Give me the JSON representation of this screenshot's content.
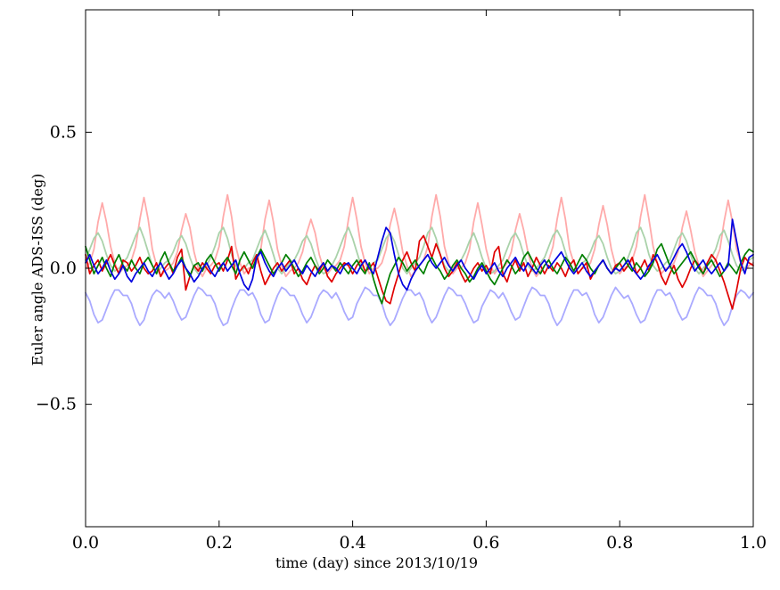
{
  "figure": {
    "background": "#ffffff",
    "frame_color": "#000000"
  },
  "chart_data": {
    "type": "line",
    "title": "",
    "xlabel": "time (day) since 2013/10/19",
    "ylabel": "Euler angle ADS-ISS (deg)",
    "xlim": [
      0.0,
      1.0
    ],
    "ylim": [
      -0.95,
      0.95
    ],
    "grid": false,
    "legend": "none",
    "x_ticks": {
      "values": [
        0.0,
        0.2,
        0.4,
        0.6,
        0.8,
        1.0
      ],
      "labels": [
        "0.0",
        "0.2",
        "0.4",
        "0.6",
        "0.8",
        "1.0"
      ]
    },
    "y_ticks": {
      "values": [
        -0.5,
        0.0,
        0.5
      ],
      "labels": [
        "−0.5",
        "0.0",
        "0.5"
      ]
    },
    "x_start": 0.0,
    "x_step": 0.00625,
    "series": [
      {
        "name": "pale-red-orbital",
        "color": "#ffaaaa",
        "linewidth": 1.8,
        "values": [
          0.0,
          0.02,
          0.07,
          0.17,
          0.24,
          0.17,
          0.08,
          0.02,
          -0.02,
          0.0,
          0.01,
          0.03,
          0.08,
          0.18,
          0.26,
          0.18,
          0.07,
          0.01,
          -0.03,
          -0.01,
          0.0,
          0.02,
          0.06,
          0.14,
          0.2,
          0.15,
          0.06,
          0.0,
          -0.03,
          0.0,
          0.01,
          0.03,
          0.08,
          0.19,
          0.27,
          0.19,
          0.08,
          0.02,
          -0.02,
          0.0,
          0.0,
          0.02,
          0.07,
          0.18,
          0.25,
          0.17,
          0.07,
          0.01,
          -0.03,
          -0.01,
          0.0,
          0.02,
          0.06,
          0.13,
          0.18,
          0.13,
          0.05,
          0.0,
          -0.02,
          0.0,
          0.01,
          0.03,
          0.08,
          0.18,
          0.26,
          0.18,
          0.08,
          0.02,
          -0.02,
          0.0,
          0.0,
          0.02,
          0.07,
          0.16,
          0.22,
          0.15,
          0.06,
          0.01,
          -0.03,
          -0.01,
          0.01,
          0.03,
          0.08,
          0.19,
          0.27,
          0.19,
          0.08,
          0.02,
          -0.02,
          0.0,
          0.0,
          0.02,
          0.07,
          0.17,
          0.24,
          0.16,
          0.07,
          0.01,
          -0.02,
          0.0,
          0.0,
          0.02,
          0.06,
          0.14,
          0.2,
          0.14,
          0.06,
          0.0,
          -0.03,
          -0.01,
          0.01,
          0.03,
          0.08,
          0.18,
          0.26,
          0.18,
          0.07,
          0.02,
          -0.02,
          0.0,
          0.0,
          0.02,
          0.07,
          0.16,
          0.23,
          0.16,
          0.07,
          0.01,
          -0.02,
          0.0,
          0.01,
          0.03,
          0.08,
          0.19,
          0.27,
          0.18,
          0.08,
          0.02,
          -0.02,
          0.0,
          0.0,
          0.02,
          0.06,
          0.15,
          0.21,
          0.14,
          0.06,
          0.01,
          -0.03,
          -0.01,
          0.01,
          0.03,
          0.07,
          0.17,
          0.25,
          0.17,
          0.07,
          0.02,
          -0.01,
          0.01,
          0.02
        ]
      },
      {
        "name": "pale-green-orbital",
        "color": "#aad2aa",
        "linewidth": 1.8,
        "values": [
          0.03,
          0.07,
          0.11,
          0.13,
          0.1,
          0.05,
          0.01,
          -0.01,
          0.0,
          0.02,
          0.04,
          0.08,
          0.12,
          0.15,
          0.11,
          0.06,
          0.01,
          -0.02,
          0.0,
          0.02,
          0.03,
          0.06,
          0.1,
          0.12,
          0.09,
          0.04,
          0.0,
          -0.02,
          -0.01,
          0.01,
          0.04,
          0.08,
          0.13,
          0.15,
          0.11,
          0.05,
          0.01,
          -0.01,
          0.0,
          0.02,
          0.03,
          0.07,
          0.11,
          0.14,
          0.1,
          0.05,
          0.0,
          -0.02,
          0.0,
          0.02,
          0.03,
          0.06,
          0.1,
          0.12,
          0.09,
          0.04,
          0.0,
          -0.02,
          -0.01,
          0.01,
          0.04,
          0.08,
          0.12,
          0.15,
          0.11,
          0.06,
          0.01,
          -0.01,
          0.0,
          0.02,
          0.03,
          0.07,
          0.11,
          0.13,
          0.1,
          0.05,
          0.0,
          -0.02,
          0.0,
          0.02,
          0.04,
          0.08,
          0.13,
          0.15,
          0.11,
          0.05,
          0.01,
          -0.01,
          0.0,
          0.02,
          0.03,
          0.06,
          0.1,
          0.13,
          0.09,
          0.04,
          0.0,
          -0.02,
          -0.01,
          0.01,
          0.03,
          0.07,
          0.11,
          0.13,
          0.1,
          0.05,
          0.01,
          -0.01,
          0.0,
          0.02,
          0.04,
          0.08,
          0.12,
          0.14,
          0.11,
          0.06,
          0.01,
          -0.02,
          0.0,
          0.02,
          0.03,
          0.06,
          0.1,
          0.12,
          0.09,
          0.04,
          0.0,
          -0.02,
          -0.01,
          0.01,
          0.04,
          0.08,
          0.13,
          0.15,
          0.11,
          0.05,
          0.01,
          -0.01,
          0.0,
          0.02,
          0.03,
          0.07,
          0.11,
          0.13,
          0.1,
          0.05,
          0.0,
          -0.02,
          0.0,
          0.02,
          0.04,
          0.07,
          0.12,
          0.14,
          0.1,
          0.05,
          0.01,
          -0.01,
          0.0,
          0.03,
          0.04
        ]
      },
      {
        "name": "pale-blue-orbital",
        "color": "#aaaaff",
        "linewidth": 1.8,
        "values": [
          -0.09,
          -0.12,
          -0.17,
          -0.2,
          -0.19,
          -0.15,
          -0.11,
          -0.08,
          -0.08,
          -0.1,
          -0.1,
          -0.13,
          -0.18,
          -0.21,
          -0.19,
          -0.14,
          -0.1,
          -0.08,
          -0.09,
          -0.11,
          -0.09,
          -0.12,
          -0.16,
          -0.19,
          -0.18,
          -0.14,
          -0.1,
          -0.07,
          -0.08,
          -0.1,
          -0.1,
          -0.13,
          -0.18,
          -0.21,
          -0.2,
          -0.15,
          -0.11,
          -0.08,
          -0.08,
          -0.1,
          -0.09,
          -0.12,
          -0.17,
          -0.2,
          -0.19,
          -0.14,
          -0.1,
          -0.07,
          -0.08,
          -0.1,
          -0.1,
          -0.13,
          -0.17,
          -0.2,
          -0.18,
          -0.14,
          -0.1,
          -0.08,
          -0.09,
          -0.11,
          -0.09,
          -0.12,
          -0.16,
          -0.19,
          -0.18,
          -0.13,
          -0.1,
          -0.07,
          -0.08,
          -0.1,
          -0.1,
          -0.13,
          -0.18,
          -0.21,
          -0.19,
          -0.15,
          -0.11,
          -0.08,
          -0.08,
          -0.1,
          -0.09,
          -0.12,
          -0.17,
          -0.2,
          -0.18,
          -0.14,
          -0.1,
          -0.07,
          -0.08,
          -0.1,
          -0.1,
          -0.13,
          -0.17,
          -0.2,
          -0.19,
          -0.14,
          -0.11,
          -0.08,
          -0.09,
          -0.11,
          -0.09,
          -0.12,
          -0.16,
          -0.19,
          -0.18,
          -0.14,
          -0.1,
          -0.07,
          -0.08,
          -0.1,
          -0.1,
          -0.13,
          -0.18,
          -0.21,
          -0.19,
          -0.15,
          -0.11,
          -0.08,
          -0.08,
          -0.1,
          -0.09,
          -0.12,
          -0.17,
          -0.2,
          -0.18,
          -0.14,
          -0.1,
          -0.07,
          -0.09,
          -0.11,
          -0.1,
          -0.13,
          -0.17,
          -0.2,
          -0.19,
          -0.15,
          -0.11,
          -0.08,
          -0.08,
          -0.1,
          -0.09,
          -0.12,
          -0.16,
          -0.19,
          -0.18,
          -0.14,
          -0.1,
          -0.07,
          -0.08,
          -0.1,
          -0.1,
          -0.13,
          -0.18,
          -0.21,
          -0.19,
          -0.14,
          -0.1,
          -0.08,
          -0.09,
          -0.11,
          -0.09
        ]
      },
      {
        "name": "red-euler",
        "color": "#e00000",
        "linewidth": 1.7,
        "values": [
          0.05,
          -0.02,
          0.01,
          0.03,
          -0.01,
          0.02,
          0.05,
          0.01,
          -0.02,
          0.03,
          0.02,
          -0.01,
          0.01,
          0.04,
          0.0,
          -0.02,
          -0.01,
          0.02,
          -0.03,
          0.0,
          0.02,
          -0.02,
          0.04,
          0.07,
          -0.08,
          -0.03,
          0.01,
          -0.01,
          0.02,
          0.0,
          -0.02,
          0.01,
          0.02,
          -0.01,
          0.03,
          0.08,
          -0.04,
          -0.01,
          0.01,
          -0.02,
          0.02,
          0.05,
          -0.01,
          -0.06,
          -0.03,
          0.0,
          0.02,
          -0.01,
          0.01,
          0.03,
          -0.02,
          0.0,
          -0.04,
          -0.06,
          -0.02,
          0.01,
          -0.01,
          0.02,
          -0.03,
          -0.05,
          -0.02,
          0.0,
          0.02,
          0.01,
          -0.02,
          0.01,
          0.03,
          -0.01,
          0.0,
          0.02,
          -0.03,
          -0.08,
          -0.12,
          -0.13,
          -0.07,
          -0.02,
          0.03,
          0.06,
          0.02,
          -0.01,
          0.1,
          0.12,
          0.08,
          0.04,
          0.09,
          0.05,
          0.0,
          -0.03,
          -0.01,
          0.02,
          -0.02,
          -0.05,
          -0.03,
          0.0,
          0.02,
          -0.01,
          0.01,
          -0.02,
          0.06,
          0.08,
          -0.02,
          -0.05,
          0.0,
          0.03,
          -0.01,
          0.02,
          -0.03,
          0.0,
          0.04,
          0.01,
          -0.02,
          0.01,
          -0.01,
          0.02,
          0.0,
          -0.03,
          0.01,
          0.03,
          -0.02,
          0.0,
          0.02,
          -0.04,
          -0.01,
          0.01,
          0.03,
          0.0,
          -0.02,
          0.01,
          0.02,
          -0.01,
          0.01,
          0.04,
          -0.02,
          0.0,
          0.03,
          -0.01,
          0.05,
          0.02,
          -0.03,
          -0.06,
          -0.02,
          0.01,
          -0.04,
          -0.07,
          -0.04,
          0.0,
          0.03,
          0.01,
          -0.02,
          0.02,
          0.05,
          0.03,
          -0.01,
          -0.05,
          -0.1,
          -0.15,
          -0.08,
          0.0,
          0.04,
          0.02,
          0.01
        ]
      },
      {
        "name": "green-euler",
        "color": "#007f00",
        "linewidth": 1.7,
        "values": [
          0.08,
          0.03,
          -0.02,
          0.01,
          0.04,
          0.0,
          -0.03,
          0.02,
          0.05,
          0.01,
          -0.01,
          0.03,
          0.0,
          -0.02,
          0.02,
          0.04,
          0.01,
          -0.02,
          0.03,
          0.06,
          0.02,
          -0.01,
          0.01,
          0.04,
          0.0,
          -0.03,
          0.01,
          0.02,
          -0.01,
          0.03,
          0.05,
          0.02,
          -0.01,
          0.02,
          0.04,
          0.01,
          -0.02,
          0.03,
          0.06,
          0.03,
          0.0,
          0.04,
          0.07,
          0.04,
          0.01,
          -0.02,
          0.0,
          0.02,
          0.05,
          0.03,
          0.0,
          -0.03,
          -0.01,
          0.02,
          0.04,
          0.01,
          -0.02,
          0.0,
          0.03,
          0.01,
          -0.01,
          0.02,
          0.0,
          -0.02,
          0.01,
          0.03,
          0.0,
          -0.02,
          0.02,
          -0.04,
          -0.09,
          -0.13,
          -0.07,
          -0.02,
          0.01,
          0.04,
          0.02,
          -0.01,
          0.01,
          0.03,
          0.0,
          -0.02,
          0.02,
          0.04,
          0.01,
          -0.01,
          -0.04,
          -0.02,
          0.01,
          0.03,
          0.0,
          -0.02,
          -0.05,
          -0.03,
          0.0,
          0.02,
          -0.01,
          -0.04,
          -0.06,
          -0.03,
          0.0,
          0.03,
          0.01,
          -0.02,
          0.0,
          0.04,
          0.06,
          0.03,
          0.0,
          -0.02,
          0.01,
          0.03,
          0.0,
          -0.02,
          0.01,
          0.04,
          0.02,
          -0.01,
          0.02,
          0.05,
          0.03,
          0.0,
          -0.02,
          0.01,
          0.03,
          0.0,
          -0.02,
          0.0,
          0.02,
          0.04,
          0.01,
          -0.01,
          0.02,
          0.0,
          -0.03,
          -0.01,
          0.02,
          0.07,
          0.09,
          0.05,
          0.01,
          -0.02,
          0.0,
          0.02,
          0.04,
          0.06,
          0.03,
          0.0,
          -0.02,
          0.01,
          0.03,
          0.0,
          -0.03,
          -0.01,
          0.02,
          0.0,
          -0.02,
          0.02,
          0.05,
          0.07,
          0.06
        ]
      },
      {
        "name": "blue-euler",
        "color": "#0000e0",
        "linewidth": 1.7,
        "values": [
          0.02,
          0.05,
          0.01,
          -0.02,
          0.0,
          0.03,
          -0.01,
          -0.04,
          -0.02,
          0.01,
          -0.03,
          -0.05,
          -0.02,
          0.0,
          0.02,
          -0.01,
          -0.03,
          0.0,
          0.02,
          -0.01,
          -0.04,
          -0.02,
          0.01,
          0.03,
          0.0,
          -0.02,
          -0.05,
          -0.03,
          0.0,
          0.02,
          -0.01,
          -0.03,
          0.0,
          0.02,
          -0.01,
          0.01,
          0.03,
          -0.02,
          -0.06,
          -0.08,
          -0.04,
          0.04,
          0.06,
          0.02,
          -0.01,
          -0.03,
          0.0,
          0.02,
          -0.01,
          0.01,
          0.03,
          0.0,
          -0.02,
          0.01,
          -0.01,
          -0.03,
          0.0,
          0.02,
          -0.01,
          0.01,
          0.0,
          -0.02,
          0.01,
          0.02,
          0.0,
          -0.02,
          0.01,
          0.03,
          0.0,
          -0.02,
          0.04,
          0.1,
          0.15,
          0.13,
          0.05,
          -0.02,
          -0.06,
          -0.08,
          -0.04,
          -0.01,
          0.01,
          0.03,
          0.05,
          0.02,
          0.0,
          0.02,
          0.04,
          0.01,
          -0.01,
          0.01,
          0.03,
          0.0,
          -0.02,
          -0.04,
          -0.01,
          0.01,
          -0.02,
          0.0,
          0.02,
          -0.01,
          -0.03,
          0.0,
          0.02,
          0.04,
          0.01,
          -0.01,
          0.02,
          0.0,
          -0.02,
          0.01,
          0.03,
          0.0,
          0.02,
          0.04,
          0.06,
          0.03,
          0.0,
          -0.02,
          0.0,
          0.02,
          -0.01,
          -0.03,
          -0.01,
          0.01,
          0.03,
          0.0,
          -0.02,
          0.0,
          -0.01,
          0.01,
          0.03,
          0.0,
          -0.02,
          -0.04,
          -0.02,
          0.01,
          0.03,
          0.05,
          0.02,
          -0.01,
          0.01,
          0.04,
          0.07,
          0.09,
          0.06,
          0.02,
          -0.01,
          0.01,
          0.03,
          0.0,
          -0.02,
          0.0,
          0.02,
          -0.01,
          0.01,
          0.18,
          0.1,
          0.02,
          -0.02,
          0.04,
          0.05
        ]
      }
    ]
  }
}
